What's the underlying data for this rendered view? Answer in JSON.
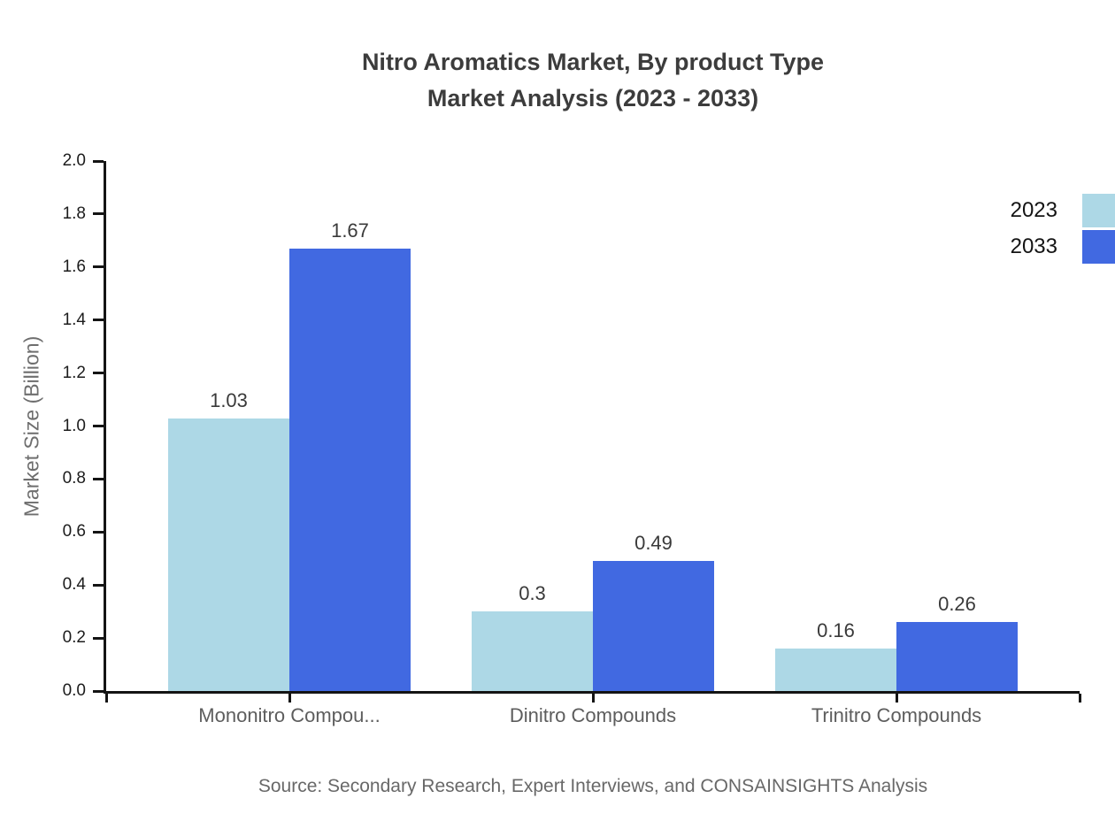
{
  "title": {
    "line1": "Nitro Aromatics Market, By product Type",
    "line2": "Market Analysis (2023 - 2033)"
  },
  "source": "Source: Secondary Research, Expert Interviews, and CONSAINSIGHTS Analysis",
  "colors": {
    "series_2023": "#ADD8E6",
    "series_2033": "#4169E1",
    "axis": "#141414"
  },
  "chart_data": {
    "type": "bar",
    "title": "Nitro Aromatics Market, By product Type Market Analysis (2023 - 2033)",
    "categories": [
      "Mononitro Compou...",
      "Dinitro Compounds",
      "Trinitro Compounds"
    ],
    "series": [
      {
        "name": "2023",
        "color": "#ADD8E6",
        "values": [
          1.03,
          0.3,
          0.16
        ]
      },
      {
        "name": "2033",
        "color": "#4169E1",
        "values": [
          1.67,
          0.49,
          0.26
        ]
      }
    ],
    "xlabel": "",
    "ylabel": "Market Size (Billion)",
    "ylim": [
      0,
      2
    ],
    "ytick_step": 0.2,
    "ytick_format_decimals": 1,
    "grid": false,
    "value_labels": true,
    "legend_position": "top-right"
  }
}
